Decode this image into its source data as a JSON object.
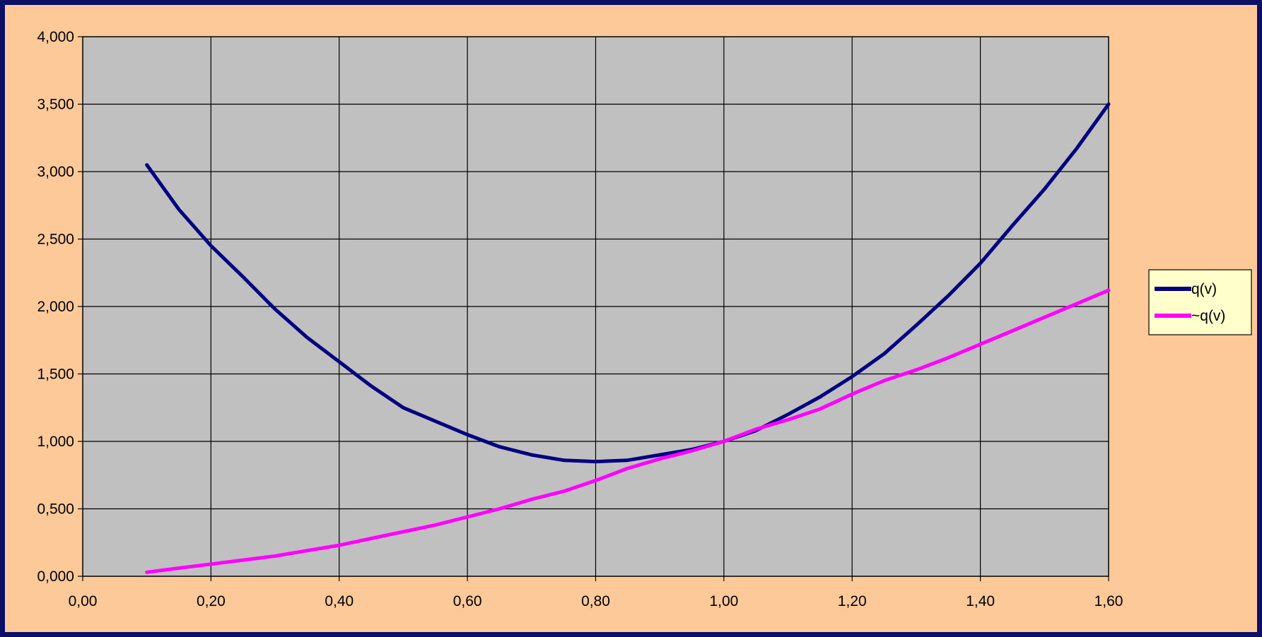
{
  "chart_data": {
    "type": "line",
    "title": "",
    "xlabel": "",
    "ylabel": "",
    "xlim": [
      0,
      1.6
    ],
    "ylim": [
      0,
      4
    ],
    "x_ticks": [
      0,
      0.2,
      0.4,
      0.6,
      0.8,
      1.0,
      1.2,
      1.4,
      1.6
    ],
    "x_tick_labels": [
      "0,00",
      "0,20",
      "0,40",
      "0,60",
      "0,80",
      "1,00",
      "1,20",
      "1,40",
      "1,60"
    ],
    "y_ticks": [
      0,
      0.5,
      1.0,
      1.5,
      2.0,
      2.5,
      3.0,
      3.5,
      4.0
    ],
    "y_tick_labels": [
      "0,000",
      "0,500",
      "1,000",
      "1,500",
      "2,000",
      "2,500",
      "3,000",
      "3,500",
      "4,000"
    ],
    "grid": true,
    "legend_position": "right",
    "plot_background": "#c0c0c0",
    "chart_background": "#fec999",
    "frame_color": "#0b0f66",
    "series": [
      {
        "name": "q(v)",
        "color": "#000080",
        "x": [
          0.1,
          0.15,
          0.2,
          0.25,
          0.3,
          0.35,
          0.4,
          0.45,
          0.5,
          0.55,
          0.6,
          0.65,
          0.7,
          0.75,
          0.8,
          0.85,
          0.9,
          0.95,
          1.0,
          1.05,
          1.1,
          1.15,
          1.2,
          1.25,
          1.3,
          1.35,
          1.4,
          1.45,
          1.5,
          1.55,
          1.6
        ],
        "y": [
          3.05,
          2.72,
          2.45,
          2.22,
          1.98,
          1.77,
          1.59,
          1.41,
          1.25,
          1.15,
          1.05,
          0.96,
          0.9,
          0.86,
          0.85,
          0.86,
          0.9,
          0.94,
          1.0,
          1.08,
          1.2,
          1.33,
          1.48,
          1.65,
          1.86,
          2.08,
          2.32,
          2.6,
          2.87,
          3.17,
          3.5
        ]
      },
      {
        "name": "~q(v)",
        "color": "#ff00ff",
        "x": [
          0.1,
          0.15,
          0.2,
          0.25,
          0.3,
          0.35,
          0.4,
          0.45,
          0.5,
          0.55,
          0.6,
          0.65,
          0.7,
          0.75,
          0.8,
          0.85,
          0.9,
          0.95,
          1.0,
          1.05,
          1.1,
          1.15,
          1.2,
          1.25,
          1.3,
          1.35,
          1.4,
          1.45,
          1.5,
          1.55,
          1.6
        ],
        "y": [
          0.03,
          0.06,
          0.09,
          0.12,
          0.15,
          0.19,
          0.23,
          0.28,
          0.33,
          0.38,
          0.44,
          0.5,
          0.57,
          0.63,
          0.71,
          0.8,
          0.87,
          0.93,
          1.0,
          1.09,
          1.16,
          1.24,
          1.35,
          1.45,
          1.53,
          1.62,
          1.72,
          1.82,
          1.92,
          2.02,
          2.12
        ]
      }
    ]
  }
}
